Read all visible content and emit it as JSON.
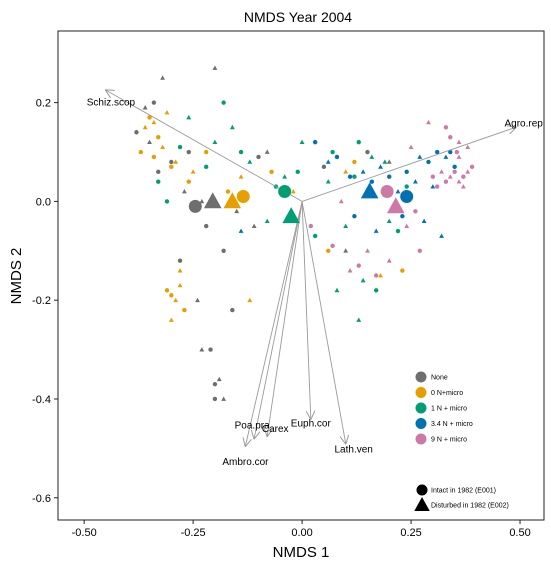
{
  "chart_data": {
    "type": "scatter",
    "title": "NMDS Year 2004",
    "xlabel": "NMDS 1",
    "ylabel": "NMDS 2",
    "xlim": [
      -0.56,
      0.555
    ],
    "ylim": [
      -0.645,
      0.345
    ],
    "x_ticks": [
      "-0.50",
      "-0.25",
      "0.00",
      "0.25",
      "0.50"
    ],
    "x_tick_values": [
      -0.5,
      -0.25,
      0.0,
      0.25,
      0.5
    ],
    "y_ticks": [
      "0.2",
      "0.0",
      "-0.2",
      "-0.4",
      "-0.6"
    ],
    "y_tick_values": [
      0.2,
      0.0,
      -0.2,
      -0.4,
      -0.6
    ],
    "grid": false,
    "legend_placement": "bottom-right",
    "colors": {
      "None": "#6e6e6e",
      "0 N+micro": "#e69f00",
      "1 N + micro": "#009e73",
      "3.4 N + micro": "#0072b2",
      "9 N + micro": "#cc79a7"
    },
    "treatment_legend": [
      {
        "label": "None",
        "color": "#6e6e6e"
      },
      {
        "label": "0 N+micro",
        "color": "#e69f00"
      },
      {
        "label": "1 N + micro",
        "color": "#009e73"
      },
      {
        "label": "3.4 N + micro",
        "color": "#0072b2"
      },
      {
        "label": "9 N + micro",
        "color": "#cc79a7"
      }
    ],
    "shape_legend": [
      {
        "label": "Intact in 1982 (E001)",
        "shape": "circle"
      },
      {
        "label": "Disturbed in 1982 (E002)",
        "shape": "triangle"
      }
    ],
    "vectors": [
      {
        "label": "Schiz.scop",
        "x": -0.45,
        "y": 0.225
      },
      {
        "label": "Agro.rep",
        "x": 0.49,
        "y": 0.15
      },
      {
        "label": "Poa.pra",
        "x": -0.11,
        "y": -0.48
      },
      {
        "label": "Carex",
        "x": -0.08,
        "y": -0.475
      },
      {
        "label": "Ambro.cor",
        "x": -0.13,
        "y": -0.495
      },
      {
        "label": "Euph.cor",
        "x": 0.02,
        "y": -0.44
      },
      {
        "label": "Lath.ven",
        "x": 0.1,
        "y": -0.49
      }
    ],
    "centroids": [
      {
        "group": "None",
        "shape": "circle",
        "x": -0.245,
        "y": -0.01
      },
      {
        "group": "None",
        "shape": "triangle",
        "x": -0.205,
        "y": 0.0
      },
      {
        "group": "0 N+micro",
        "shape": "triangle",
        "x": -0.16,
        "y": 0.0
      },
      {
        "group": "0 N+micro",
        "shape": "circle",
        "x": -0.135,
        "y": 0.01
      },
      {
        "group": "1 N + micro",
        "shape": "circle",
        "x": -0.04,
        "y": 0.02
      },
      {
        "group": "1 N + micro",
        "shape": "triangle",
        "x": -0.025,
        "y": -0.03
      },
      {
        "group": "3.4 N + micro",
        "shape": "triangle",
        "x": 0.155,
        "y": 0.02
      },
      {
        "group": "3.4 N + micro",
        "shape": "circle",
        "x": 0.24,
        "y": 0.01
      },
      {
        "group": "9 N + micro",
        "shape": "circle",
        "x": 0.195,
        "y": 0.02
      },
      {
        "group": "9 N + micro",
        "shape": "triangle",
        "x": 0.215,
        "y": -0.01
      }
    ],
    "points": [
      {
        "group": "None",
        "shape": "circle",
        "x": -0.38,
        "y": 0.14
      },
      {
        "group": "None",
        "shape": "triangle",
        "x": -0.35,
        "y": 0.12
      },
      {
        "group": "None",
        "shape": "circle",
        "x": -0.34,
        "y": 0.2
      },
      {
        "group": "None",
        "shape": "triangle",
        "x": -0.32,
        "y": 0.25
      },
      {
        "group": "None",
        "shape": "circle",
        "x": -0.3,
        "y": 0.08
      },
      {
        "group": "None",
        "shape": "triangle",
        "x": -0.27,
        "y": 0.02
      },
      {
        "group": "None",
        "shape": "circle",
        "x": -0.26,
        "y": 0.1
      },
      {
        "group": "None",
        "shape": "triangle",
        "x": -0.23,
        "y": 0.0
      },
      {
        "group": "None",
        "shape": "circle",
        "x": -0.22,
        "y": -0.05
      },
      {
        "group": "None",
        "shape": "triangle",
        "x": -0.2,
        "y": 0.27
      },
      {
        "group": "None",
        "shape": "circle",
        "x": -0.18,
        "y": -0.1
      },
      {
        "group": "None",
        "shape": "triangle",
        "x": -0.15,
        "y": -0.02
      },
      {
        "group": "None",
        "shape": "circle",
        "x": -0.28,
        "y": -0.12
      },
      {
        "group": "None",
        "shape": "triangle",
        "x": -0.24,
        "y": -0.2
      },
      {
        "group": "None",
        "shape": "circle",
        "x": -0.21,
        "y": -0.3
      },
      {
        "group": "None",
        "shape": "triangle",
        "x": -0.19,
        "y": -0.36
      },
      {
        "group": "None",
        "shape": "circle",
        "x": -0.2,
        "y": -0.37
      },
      {
        "group": "None",
        "shape": "triangle",
        "x": -0.23,
        "y": -0.3
      },
      {
        "group": "None",
        "shape": "circle",
        "x": -0.2,
        "y": -0.4
      },
      {
        "group": "None",
        "shape": "triangle",
        "x": -0.18,
        "y": -0.4
      },
      {
        "group": "None",
        "shape": "circle",
        "x": -0.16,
        "y": -0.22
      },
      {
        "group": "None",
        "shape": "triangle",
        "x": -0.11,
        "y": -0.05
      },
      {
        "group": "None",
        "shape": "circle",
        "x": -0.33,
        "y": 0.06
      },
      {
        "group": "None",
        "shape": "triangle",
        "x": -0.36,
        "y": 0.19
      },
      {
        "group": "None",
        "shape": "circle",
        "x": -0.1,
        "y": 0.09
      },
      {
        "group": "None",
        "shape": "triangle",
        "x": -0.08,
        "y": 0.1
      },
      {
        "group": "None",
        "shape": "circle",
        "x": 0.05,
        "y": 0.07
      },
      {
        "group": "None",
        "shape": "triangle",
        "x": 0.1,
        "y": -0.1
      },
      {
        "group": "None",
        "shape": "circle",
        "x": 0.15,
        "y": 0.1
      },
      {
        "group": "None",
        "shape": "triangle",
        "x": 0.2,
        "y": 0.08
      },
      {
        "group": "0 N+micro",
        "shape": "circle",
        "x": -0.37,
        "y": 0.1
      },
      {
        "group": "0 N+micro",
        "shape": "triangle",
        "x": -0.36,
        "y": 0.15
      },
      {
        "group": "0 N+micro",
        "shape": "circle",
        "x": -0.35,
        "y": 0.17
      },
      {
        "group": "0 N+micro",
        "shape": "triangle",
        "x": -0.34,
        "y": 0.16
      },
      {
        "group": "0 N+micro",
        "shape": "circle",
        "x": -0.33,
        "y": 0.13
      },
      {
        "group": "0 N+micro",
        "shape": "triangle",
        "x": -0.31,
        "y": 0.18
      },
      {
        "group": "0 N+micro",
        "shape": "circle",
        "x": -0.3,
        "y": 0.07
      },
      {
        "group": "0 N+micro",
        "shape": "triangle",
        "x": -0.29,
        "y": 0.08
      },
      {
        "group": "0 N+micro",
        "shape": "circle",
        "x": -0.26,
        "y": 0.04
      },
      {
        "group": "0 N+micro",
        "shape": "triangle",
        "x": -0.25,
        "y": 0.06
      },
      {
        "group": "0 N+micro",
        "shape": "circle",
        "x": -0.22,
        "y": 0.1
      },
      {
        "group": "0 N+micro",
        "shape": "triangle",
        "x": -0.28,
        "y": -0.14
      },
      {
        "group": "0 N+micro",
        "shape": "circle",
        "x": -0.3,
        "y": -0.19
      },
      {
        "group": "0 N+micro",
        "shape": "triangle",
        "x": -0.29,
        "y": -0.2
      },
      {
        "group": "0 N+micro",
        "shape": "circle",
        "x": -0.31,
        "y": -0.18
      },
      {
        "group": "0 N+micro",
        "shape": "triangle",
        "x": -0.3,
        "y": -0.24
      },
      {
        "group": "0 N+micro",
        "shape": "circle",
        "x": -0.27,
        "y": -0.22
      },
      {
        "group": "0 N+micro",
        "shape": "triangle",
        "x": -0.28,
        "y": -0.17
      },
      {
        "group": "0 N+micro",
        "shape": "circle",
        "x": -0.07,
        "y": 0.06
      },
      {
        "group": "0 N+micro",
        "shape": "triangle",
        "x": -0.02,
        "y": 0.02
      },
      {
        "group": "0 N+micro",
        "shape": "circle",
        "x": 0.06,
        "y": -0.1
      },
      {
        "group": "0 N+micro",
        "shape": "triangle",
        "x": 0.1,
        "y": 0.06
      },
      {
        "group": "0 N+micro",
        "shape": "circle",
        "x": 0.12,
        "y": 0.08
      },
      {
        "group": "0 N+micro",
        "shape": "triangle",
        "x": 0.18,
        "y": -0.15
      },
      {
        "group": "0 N+micro",
        "shape": "circle",
        "x": 0.23,
        "y": -0.14
      },
      {
        "group": "0 N+micro",
        "shape": "triangle",
        "x": -0.12,
        "y": -0.2
      },
      {
        "group": "0 N+micro",
        "shape": "circle",
        "x": -0.17,
        "y": 0.02
      },
      {
        "group": "0 N+micro",
        "shape": "triangle",
        "x": -0.14,
        "y": 0.05
      },
      {
        "group": "0 N+micro",
        "shape": "circle",
        "x": -0.34,
        "y": 0.09
      },
      {
        "group": "0 N+micro",
        "shape": "triangle",
        "x": -0.32,
        "y": 0.11
      },
      {
        "group": "1 N + micro",
        "shape": "circle",
        "x": -0.28,
        "y": 0.11
      },
      {
        "group": "1 N + micro",
        "shape": "triangle",
        "x": -0.26,
        "y": 0.17
      },
      {
        "group": "1 N + micro",
        "shape": "circle",
        "x": -0.22,
        "y": 0.07
      },
      {
        "group": "1 N + micro",
        "shape": "triangle",
        "x": -0.2,
        "y": 0.12
      },
      {
        "group": "1 N + micro",
        "shape": "circle",
        "x": -0.18,
        "y": 0.2
      },
      {
        "group": "1 N + micro",
        "shape": "triangle",
        "x": -0.16,
        "y": 0.15
      },
      {
        "group": "1 N + micro",
        "shape": "circle",
        "x": -0.14,
        "y": 0.1
      },
      {
        "group": "1 N + micro",
        "shape": "triangle",
        "x": -0.12,
        "y": 0.08
      },
      {
        "group": "1 N + micro",
        "shape": "circle",
        "x": -0.06,
        "y": 0.03
      },
      {
        "group": "1 N + micro",
        "shape": "triangle",
        "x": -0.04,
        "y": 0.05
      },
      {
        "group": "1 N + micro",
        "shape": "circle",
        "x": -0.01,
        "y": 0.06
      },
      {
        "group": "1 N + micro",
        "shape": "triangle",
        "x": 0.0,
        "y": 0.12
      },
      {
        "group": "1 N + micro",
        "shape": "circle",
        "x": 0.07,
        "y": 0.1
      },
      {
        "group": "1 N + micro",
        "shape": "triangle",
        "x": 0.06,
        "y": 0.04
      },
      {
        "group": "1 N + micro",
        "shape": "circle",
        "x": 0.12,
        "y": 0.05
      },
      {
        "group": "1 N + micro",
        "shape": "triangle",
        "x": 0.16,
        "y": 0.09
      },
      {
        "group": "1 N + micro",
        "shape": "circle",
        "x": 0.13,
        "y": 0.12
      },
      {
        "group": "1 N + micro",
        "shape": "triangle",
        "x": 0.2,
        "y": -0.04
      },
      {
        "group": "1 N + micro",
        "shape": "circle",
        "x": 0.22,
        "y": -0.06
      },
      {
        "group": "1 N + micro",
        "shape": "triangle",
        "x": 0.1,
        "y": -0.05
      },
      {
        "group": "1 N + micro",
        "shape": "circle",
        "x": 0.03,
        "y": -0.07
      },
      {
        "group": "1 N + micro",
        "shape": "triangle",
        "x": -0.08,
        "y": -0.04
      },
      {
        "group": "1 N + micro",
        "shape": "circle",
        "x": -0.31,
        "y": 0.0
      },
      {
        "group": "1 N + micro",
        "shape": "triangle",
        "x": 0.19,
        "y": 0.08
      },
      {
        "group": "1 N + micro",
        "shape": "circle",
        "x": 0.24,
        "y": 0.03
      },
      {
        "group": "1 N + micro",
        "shape": "triangle",
        "x": 0.08,
        "y": -0.18
      },
      {
        "group": "1 N + micro",
        "shape": "circle",
        "x": 0.17,
        "y": -0.18
      },
      {
        "group": "1 N + micro",
        "shape": "triangle",
        "x": 0.13,
        "y": -0.24
      },
      {
        "group": "1 N + micro",
        "shape": "circle",
        "x": -0.33,
        "y": 0.04
      },
      {
        "group": "1 N + micro",
        "shape": "triangle",
        "x": 0.14,
        "y": -0.16
      },
      {
        "group": "3.4 N + micro",
        "shape": "circle",
        "x": 0.03,
        "y": 0.12
      },
      {
        "group": "3.4 N + micro",
        "shape": "triangle",
        "x": 0.06,
        "y": 0.08
      },
      {
        "group": "3.4 N + micro",
        "shape": "circle",
        "x": 0.11,
        "y": 0.05
      },
      {
        "group": "3.4 N + micro",
        "shape": "triangle",
        "x": 0.14,
        "y": 0.06
      },
      {
        "group": "3.4 N + micro",
        "shape": "circle",
        "x": 0.16,
        "y": 0.04
      },
      {
        "group": "3.4 N + micro",
        "shape": "triangle",
        "x": 0.18,
        "y": 0.07
      },
      {
        "group": "3.4 N + micro",
        "shape": "circle",
        "x": 0.2,
        "y": 0.05
      },
      {
        "group": "3.4 N + micro",
        "shape": "triangle",
        "x": 0.22,
        "y": 0.02
      },
      {
        "group": "3.4 N + micro",
        "shape": "circle",
        "x": 0.24,
        "y": 0.06
      },
      {
        "group": "3.4 N + micro",
        "shape": "triangle",
        "x": 0.26,
        "y": 0.04
      },
      {
        "group": "3.4 N + micro",
        "shape": "circle",
        "x": 0.29,
        "y": 0.08
      },
      {
        "group": "3.4 N + micro",
        "shape": "triangle",
        "x": 0.3,
        "y": 0.03
      },
      {
        "group": "3.4 N + micro",
        "shape": "circle",
        "x": 0.31,
        "y": 0.1
      },
      {
        "group": "3.4 N + micro",
        "shape": "triangle",
        "x": 0.33,
        "y": 0.09
      },
      {
        "group": "3.4 N + micro",
        "shape": "circle",
        "x": 0.35,
        "y": 0.07
      },
      {
        "group": "3.4 N + micro",
        "shape": "triangle",
        "x": 0.28,
        "y": -0.04
      },
      {
        "group": "3.4 N + micro",
        "shape": "circle",
        "x": 0.23,
        "y": -0.03
      },
      {
        "group": "3.4 N + micro",
        "shape": "triangle",
        "x": 0.17,
        "y": -0.06
      },
      {
        "group": "3.4 N + micro",
        "shape": "circle",
        "x": 0.12,
        "y": -0.03
      },
      {
        "group": "3.4 N + micro",
        "shape": "triangle",
        "x": -0.14,
        "y": -0.06
      },
      {
        "group": "3.4 N + micro",
        "shape": "circle",
        "x": 0.08,
        "y": 0.09
      },
      {
        "group": "3.4 N + micro",
        "shape": "triangle",
        "x": 0.32,
        "y": -0.07
      },
      {
        "group": "3.4 N + micro",
        "shape": "circle",
        "x": 0.34,
        "y": 0.1
      },
      {
        "group": "3.4 N + micro",
        "shape": "triangle",
        "x": 0.27,
        "y": 0.09
      },
      {
        "group": "9 N + micro",
        "shape": "circle",
        "x": 0.3,
        "y": 0.05
      },
      {
        "group": "9 N + micro",
        "shape": "triangle",
        "x": 0.32,
        "y": 0.06
      },
      {
        "group": "9 N + micro",
        "shape": "circle",
        "x": 0.33,
        "y": 0.04
      },
      {
        "group": "9 N + micro",
        "shape": "triangle",
        "x": 0.34,
        "y": 0.05
      },
      {
        "group": "9 N + micro",
        "shape": "circle",
        "x": 0.35,
        "y": 0.06
      },
      {
        "group": "9 N + micro",
        "shape": "triangle",
        "x": 0.36,
        "y": 0.04
      },
      {
        "group": "9 N + micro",
        "shape": "circle",
        "x": 0.37,
        "y": 0.05
      },
      {
        "group": "9 N + micro",
        "shape": "triangle",
        "x": 0.38,
        "y": 0.06
      },
      {
        "group": "9 N + micro",
        "shape": "circle",
        "x": 0.355,
        "y": 0.1
      },
      {
        "group": "9 N + micro",
        "shape": "triangle",
        "x": 0.36,
        "y": 0.09
      },
      {
        "group": "9 N + micro",
        "shape": "circle",
        "x": 0.39,
        "y": 0.07
      },
      {
        "group": "9 N + micro",
        "shape": "triangle",
        "x": 0.38,
        "y": 0.11
      },
      {
        "group": "9 N + micro",
        "shape": "circle",
        "x": 0.33,
        "y": 0.15
      },
      {
        "group": "9 N + micro",
        "shape": "triangle",
        "x": 0.29,
        "y": 0.16
      },
      {
        "group": "9 N + micro",
        "shape": "circle",
        "x": 0.31,
        "y": 0.03
      },
      {
        "group": "9 N + micro",
        "shape": "triangle",
        "x": 0.37,
        "y": 0.03
      },
      {
        "group": "9 N + micro",
        "shape": "circle",
        "x": 0.26,
        "y": -0.02
      },
      {
        "group": "9 N + micro",
        "shape": "triangle",
        "x": 0.24,
        "y": -0.05
      },
      {
        "group": "9 N + micro",
        "shape": "circle",
        "x": 0.27,
        "y": -0.1
      },
      {
        "group": "9 N + micro",
        "shape": "triangle",
        "x": 0.2,
        "y": -0.12
      },
      {
        "group": "9 N + micro",
        "shape": "circle",
        "x": 0.13,
        "y": -0.13
      },
      {
        "group": "9 N + micro",
        "shape": "triangle",
        "x": 0.15,
        "y": -0.1
      },
      {
        "group": "9 N + micro",
        "shape": "circle",
        "x": 0.17,
        "y": -0.15
      },
      {
        "group": "9 N + micro",
        "shape": "triangle",
        "x": 0.09,
        "y": 0.0
      },
      {
        "group": "9 N + micro",
        "shape": "circle",
        "x": 0.07,
        "y": -0.09
      },
      {
        "group": "9 N + micro",
        "shape": "triangle",
        "x": 0.25,
        "y": 0.11
      },
      {
        "group": "9 N + micro",
        "shape": "circle",
        "x": 0.02,
        "y": -0.05
      },
      {
        "group": "9 N + micro",
        "shape": "triangle",
        "x": 0.11,
        "y": -0.14
      },
      {
        "group": "9 N + micro",
        "shape": "circle",
        "x": 0.34,
        "y": 0.13
      },
      {
        "group": "9 N + micro",
        "shape": "triangle",
        "x": 0.36,
        "y": 0.12
      }
    ]
  }
}
